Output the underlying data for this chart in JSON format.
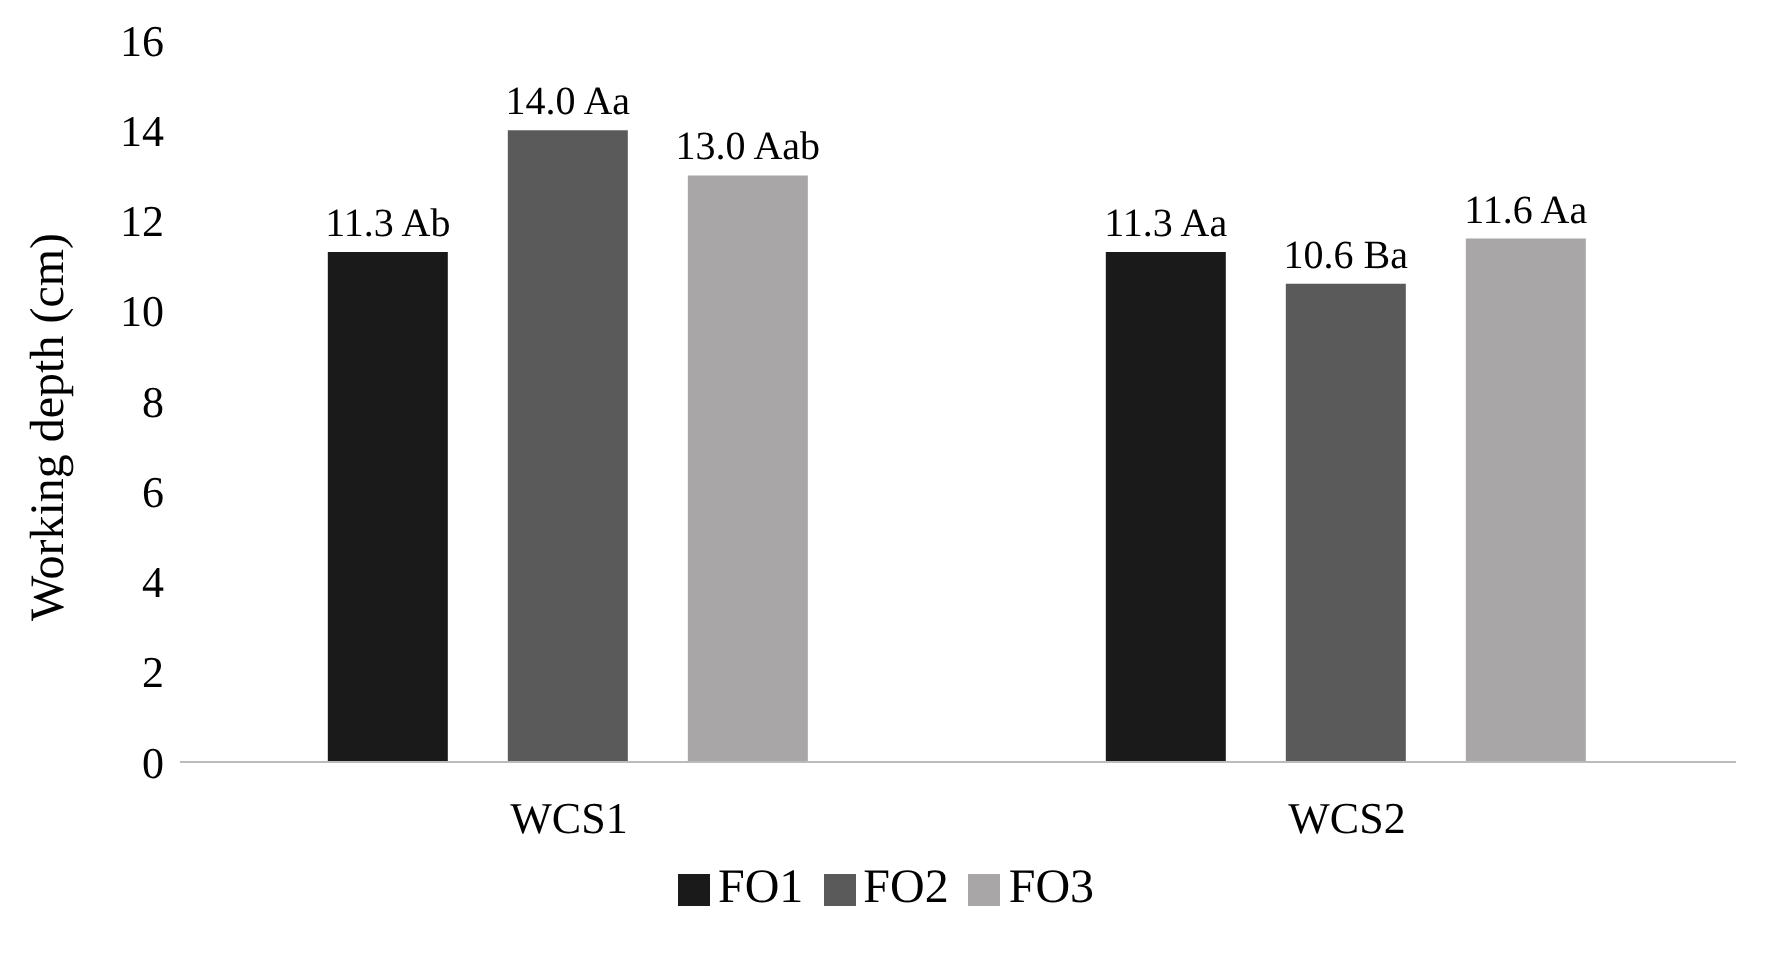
{
  "chart_data": {
    "type": "bar",
    "ylabel": "Working depth (cm)",
    "categories": [
      "WCS1",
      "WCS2"
    ],
    "series": [
      {
        "name": "FO1",
        "color": "#1a1a1a",
        "values": [
          11.3,
          11.3
        ],
        "value_labels": [
          "11.3 Ab",
          "11.3 Aa"
        ]
      },
      {
        "name": "FO2",
        "color": "#5a5a5a",
        "values": [
          14.0,
          10.6
        ],
        "value_labels": [
          "14.0 Aa",
          "10.6 Ba"
        ]
      },
      {
        "name": "FO3",
        "color": "#a8a6a6",
        "values": [
          13.0,
          11.6
        ],
        "value_labels": [
          "13.0 Aab",
          "11.6 Aa"
        ]
      }
    ],
    "ylim": [
      0,
      16
    ],
    "yticks": [
      0,
      2,
      4,
      6,
      8,
      10,
      12,
      14,
      16
    ],
    "grid": false,
    "legend": "bottom"
  }
}
